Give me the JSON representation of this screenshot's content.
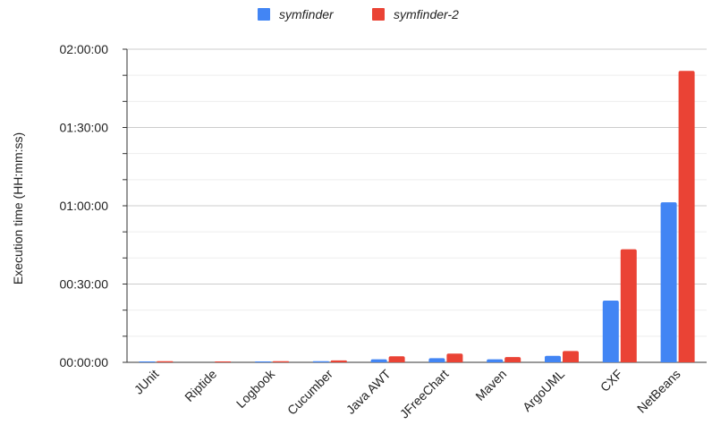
{
  "chart_data": {
    "type": "bar",
    "title": "",
    "xlabel": "",
    "ylabel": "Execution time (HH:mm:ss)",
    "ylim_seconds": [
      0,
      7200
    ],
    "y_ticks": [
      {
        "label": "00:00:00",
        "seconds": 0
      },
      {
        "label": "00:30:00",
        "seconds": 1800
      },
      {
        "label": "01:00:00",
        "seconds": 3600
      },
      {
        "label": "01:30:00",
        "seconds": 5400
      },
      {
        "label": "02:00:00",
        "seconds": 7200
      }
    ],
    "grid": true,
    "legend_position": "top-center",
    "categories": [
      "JUnit",
      "Riptide",
      "Logbook",
      "Cucumber",
      "Java AWT",
      "JFreeChart",
      "Maven",
      "ArgoUML",
      "CXF",
      "NetBeans"
    ],
    "series": [
      {
        "name": "symfinder",
        "color": "#4285f4",
        "values": [
          20,
          0,
          20,
          25,
          70,
          95,
          70,
          150,
          1420,
          3680
        ]
      },
      {
        "name": "symfinder-2",
        "color": "#ea4335",
        "values": [
          25,
          20,
          25,
          45,
          140,
          200,
          120,
          260,
          2600,
          6700
        ]
      }
    ]
  }
}
